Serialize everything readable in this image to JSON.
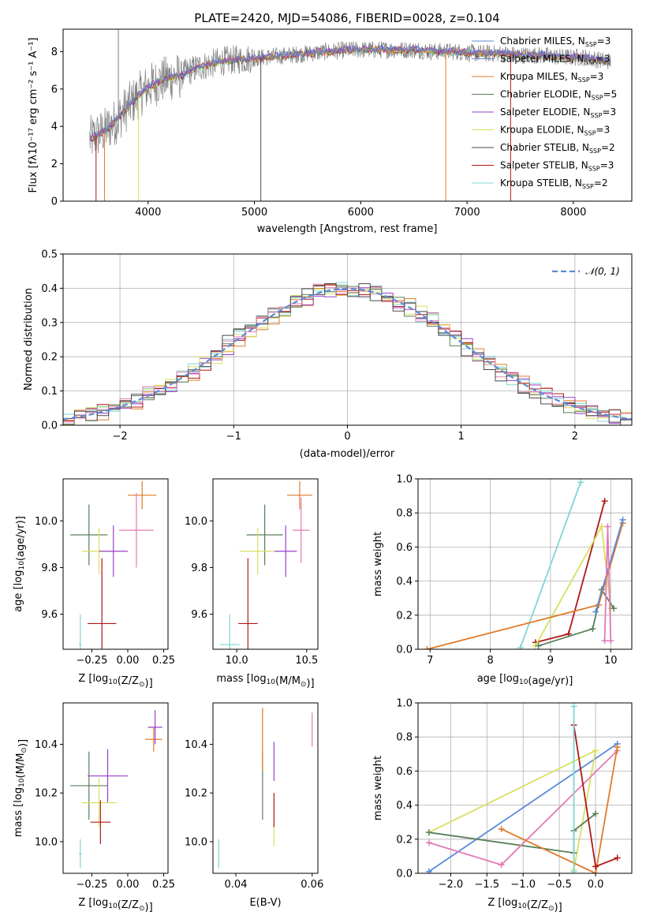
{
  "figure": {
    "title": "PLATE=2420, MJD=54086, FIBERID=0028, z=0.104"
  },
  "colors": {
    "Chabrier MILES": "#5b8bd8",
    "Salpeter MILES": "#6a7fd6",
    "Kroupa MILES": "#e07b2a",
    "Chabrier ELODIE": "#5a7f5a",
    "Salpeter ELODIE": "#9a3fc8",
    "Kroupa ELODIE": "#d8e060",
    "Chabrier STELIB": "#4a4a4a",
    "Salpeter STELIB": "#b01818",
    "Kroupa STELIB": "#7fd6d6",
    "Pink": "#e27ab4",
    "Data": "#808080",
    "Normal": "#5b8bd8"
  },
  "chart_data": [
    {
      "id": "spectrum",
      "type": "line",
      "xlabel": "wavelength [Angstrom, rest frame]",
      "ylabel": "Flux [f_λ10^-17 erg cm^-2 s^-1 A^-1]",
      "xlim": [
        3200,
        8550
      ],
      "ylim": [
        0,
        9.2
      ],
      "xticks": [
        "4000",
        "5000",
        "6000",
        "7000",
        "8000"
      ],
      "yticks": [
        "0",
        "2",
        "4",
        "6",
        "8"
      ],
      "legend_position": "right",
      "legend": [
        {
          "label": "Chabrier MILES, N",
          "sub": "SSP",
          "suffix": "=3",
          "color_key": "Chabrier MILES"
        },
        {
          "label": "Salpeter MILES, N",
          "sub": "SSP",
          "suffix": "=3",
          "color_key": "Salpeter MILES"
        },
        {
          "label": "Kroupa MILES, N",
          "sub": "SSP",
          "suffix": "=3",
          "color_key": "Kroupa MILES"
        },
        {
          "label": "Chabrier ELODIE, N",
          "sub": "SSP",
          "suffix": "=5",
          "color_key": "Chabrier ELODIE"
        },
        {
          "label": "Salpeter ELODIE, N",
          "sub": "SSP",
          "suffix": "=3",
          "color_key": "Salpeter ELODIE"
        },
        {
          "label": "Kroupa ELODIE, N",
          "sub": "SSP",
          "suffix": "=3",
          "color_key": "Kroupa ELODIE"
        },
        {
          "label": "Chabrier STELIB, N",
          "sub": "SSP",
          "suffix": "=2",
          "color_key": "Chabrier STELIB"
        },
        {
          "label": "Salpeter STELIB, N",
          "sub": "SSP",
          "suffix": "=3",
          "color_key": "Salpeter STELIB"
        },
        {
          "label": "Kroupa STELIB, N",
          "sub": "SSP",
          "suffix": "=2",
          "color_key": "Kroupa STELIB"
        }
      ],
      "continuum": {
        "x": [
          3450,
          3600,
          3700,
          3800,
          3900,
          4000,
          4100,
          4200,
          4300,
          4400,
          4500,
          4700,
          4900,
          5100,
          5300,
          5500,
          5700,
          5900,
          6100,
          6300,
          6500,
          6700,
          6900,
          7100,
          7300,
          7500,
          7700,
          7900,
          8100,
          8300
        ],
        "y": [
          3.3,
          3.8,
          4.3,
          5.0,
          5.6,
          6.1,
          6.4,
          6.6,
          6.7,
          7.0,
          7.2,
          7.5,
          7.6,
          7.7,
          7.8,
          7.9,
          8.0,
          8.1,
          8.1,
          8.1,
          8.1,
          8.0,
          8.0,
          7.9,
          7.9,
          7.8,
          7.8,
          7.7,
          7.7,
          7.5
        ]
      }
    },
    {
      "id": "residuals",
      "type": "bar",
      "xlabel": "(data-model)/error",
      "ylabel": "Normed distribution",
      "xlim": [
        -2.5,
        2.5
      ],
      "ylim": [
        0,
        0.5
      ],
      "xticks": [
        "−2",
        "−1",
        "0",
        "1",
        "2"
      ],
      "yticks": [
        "0.0",
        "0.1",
        "0.2",
        "0.3",
        "0.4",
        "0.5"
      ],
      "grid": true,
      "legend": "N(0,1)",
      "legend_position": "top-right"
    },
    {
      "id": "age_vs_Z",
      "type": "scatter",
      "xlabel": "Z [log10(Z/Z⊙)]",
      "ylabel": "age [log10(age/yr)]",
      "xlim": [
        -0.45,
        0.28
      ],
      "ylim": [
        9.45,
        10.18
      ],
      "xticks": [
        "−0.25",
        "0.00",
        "0.25"
      ],
      "yticks": [
        "9.6",
        "9.8",
        "10.0"
      ],
      "points": [
        {
          "x": -0.27,
          "y": 9.94,
          "xerr": 0.13,
          "yerr": 0.13,
          "c": "Chabrier ELODIE"
        },
        {
          "x": -0.2,
          "y": 9.87,
          "xerr": 0.12,
          "yerr": 0.1,
          "c": "Kroupa ELODIE"
        },
        {
          "x": -0.1,
          "y": 9.87,
          "xerr": 0.1,
          "yerr": 0.11,
          "c": "Salpeter ELODIE"
        },
        {
          "x": -0.18,
          "y": 9.56,
          "xerr": 0.1,
          "yerr": 0.28,
          "c": "Salpeter STELIB"
        },
        {
          "x": -0.33,
          "y": 9.47,
          "xerr": 0.01,
          "yerr": 0.13,
          "c": "Kroupa STELIB"
        },
        {
          "x": 0.1,
          "y": 10.11,
          "xerr": 0.1,
          "yerr": 0.06,
          "c": "Kroupa MILES"
        },
        {
          "x": 0.06,
          "y": 9.96,
          "xerr": 0.12,
          "yerr": 0.16,
          "c": "Pink"
        }
      ]
    },
    {
      "id": "age_vs_mass",
      "type": "scatter",
      "xlabel": "mass [log10(M/M⊙)]",
      "ylabel": "",
      "xlim": [
        9.83,
        10.58
      ],
      "ylim": [
        9.45,
        10.18
      ],
      "xticks": [
        "10.0",
        "10.5"
      ],
      "yticks": [
        "9.6",
        "9.8",
        "10.0"
      ],
      "points": [
        {
          "x": 10.2,
          "y": 9.94,
          "xerr": 0.13,
          "yerr": 0.13,
          "c": "Chabrier ELODIE"
        },
        {
          "x": 10.15,
          "y": 9.87,
          "xerr": 0.13,
          "yerr": 0.1,
          "c": "Kroupa ELODIE"
        },
        {
          "x": 10.35,
          "y": 9.87,
          "xerr": 0.08,
          "yerr": 0.11,
          "c": "Salpeter ELODIE"
        },
        {
          "x": 10.08,
          "y": 9.56,
          "xerr": 0.07,
          "yerr": 0.28,
          "c": "Salpeter STELIB"
        },
        {
          "x": 9.95,
          "y": 9.47,
          "xerr": 0.07,
          "yerr": 0.13,
          "c": "Kroupa STELIB"
        },
        {
          "x": 10.45,
          "y": 10.11,
          "xerr": 0.09,
          "yerr": 0.06,
          "c": "Kroupa MILES"
        },
        {
          "x": 10.46,
          "y": 9.96,
          "xerr": 0.06,
          "yerr": 0.14,
          "c": "Pink"
        }
      ]
    },
    {
      "id": "massweight_vs_age",
      "type": "line",
      "xlabel": "age [log10(age/yr)]",
      "ylabel": "mass weight",
      "xlim": [
        6.8,
        10.35
      ],
      "ylim": [
        0,
        1
      ],
      "xticks": [
        "7",
        "8",
        "9",
        "10"
      ],
      "yticks": [
        "0.0",
        "0.2",
        "0.4",
        "0.6",
        "0.8",
        "1.0"
      ],
      "grid": true,
      "series": [
        {
          "c": "Kroupa STELIB",
          "x": [
            8.5,
            9.5
          ],
          "y": [
            0.01,
            0.98
          ]
        },
        {
          "c": "Salpeter STELIB",
          "x": [
            8.75,
            9.3,
            9.9
          ],
          "y": [
            0.04,
            0.09,
            0.87
          ]
        },
        {
          "c": "Kroupa ELODIE",
          "x": [
            8.75,
            9.85,
            10.0
          ],
          "y": [
            0.02,
            0.72,
            0.24
          ]
        },
        {
          "c": "Chabrier ELODIE",
          "x": [
            8.8,
            9.7,
            9.85,
            10.05
          ],
          "y": [
            0.02,
            0.12,
            0.35,
            0.24
          ]
        },
        {
          "c": "Kroupa MILES",
          "x": [
            6.95,
            9.8,
            10.2
          ],
          "y": [
            0.0,
            0.26,
            0.74
          ]
        },
        {
          "c": "Chabrier MILES",
          "x": [
            9.75,
            10.2
          ],
          "y": [
            0.22,
            0.76
          ]
        },
        {
          "c": "Pink",
          "x": [
            9.9,
            9.95,
            10.0
          ],
          "y": [
            0.05,
            0.72,
            0.05
          ]
        }
      ]
    },
    {
      "id": "mass_vs_Z",
      "type": "scatter",
      "xlabel": "Z [log10(Z/Z⊙)]",
      "ylabel": "mass [log10(M/M⊙)]",
      "xlim": [
        -0.45,
        0.28
      ],
      "ylim": [
        9.87,
        10.57
      ],
      "xticks": [
        "−0.25",
        "0.00",
        "0.25"
      ],
      "yticks": [
        "10.0",
        "10.2",
        "10.4"
      ],
      "points": [
        {
          "x": -0.27,
          "y": 10.23,
          "xerr": 0.13,
          "yerr": 0.14,
          "c": "Chabrier ELODIE"
        },
        {
          "x": -0.14,
          "y": 10.27,
          "xerr": 0.14,
          "yerr": 0.11,
          "c": "Salpeter ELODIE"
        },
        {
          "x": -0.2,
          "y": 10.16,
          "xerr": 0.12,
          "yerr": 0.1,
          "c": "Kroupa ELODIE"
        },
        {
          "x": -0.19,
          "y": 10.08,
          "xerr": 0.07,
          "yerr": 0.09,
          "c": "Salpeter STELIB"
        },
        {
          "x": -0.33,
          "y": 9.95,
          "xerr": 0.01,
          "yerr": 0.06,
          "c": "Kroupa STELIB"
        },
        {
          "x": 0.18,
          "y": 10.42,
          "xerr": 0.06,
          "yerr": 0.05,
          "c": "Kroupa MILES"
        },
        {
          "x": 0.19,
          "y": 10.47,
          "xerr": 0.05,
          "yerr": 0.07,
          "c": "Salpeter ELODIE"
        }
      ]
    },
    {
      "id": "mass_vs_EBV",
      "type": "scatter",
      "xlabel": "E(B-V)",
      "ylabel": "",
      "xlim": [
        0.034,
        0.0615
      ],
      "ylim": [
        9.87,
        10.57
      ],
      "xticks": [
        "0.04",
        "0.06"
      ],
      "yticks": [
        "10.0",
        "10.2",
        "10.4"
      ],
      "points": [
        {
          "x": 0.047,
          "y": 10.23,
          "xerr": 0.0,
          "yerr": 0.14,
          "c": "Chabrier ELODIE"
        },
        {
          "x": 0.047,
          "y": 10.42,
          "xerr": 0.0,
          "yerr": 0.13,
          "c": "Kroupa MILES"
        },
        {
          "x": 0.05,
          "y": 10.33,
          "xerr": 0.0,
          "yerr": 0.08,
          "c": "Salpeter ELODIE"
        },
        {
          "x": 0.05,
          "y": 10.08,
          "xerr": 0.0,
          "yerr": 0.1,
          "c": "Kroupa ELODIE"
        },
        {
          "x": 0.05,
          "y": 10.13,
          "xerr": 0.0,
          "yerr": 0.07,
          "c": "Salpeter STELIB"
        },
        {
          "x": 0.0355,
          "y": 9.95,
          "xerr": 0.0,
          "yerr": 0.06,
          "c": "Kroupa STELIB"
        },
        {
          "x": 0.06,
          "y": 10.46,
          "xerr": 0.0,
          "yerr": 0.07,
          "c": "Pink"
        }
      ]
    },
    {
      "id": "massweight_vs_Z",
      "type": "line",
      "xlabel": "Z [log10(Z/Z⊙)]",
      "ylabel": "mass weight",
      "xlim": [
        -2.45,
        0.5
      ],
      "ylim": [
        0,
        1
      ],
      "xticks": [
        "−2.0",
        "−1.5",
        "−1.0",
        "−0.5",
        "0.0"
      ],
      "yticks": [
        "0.0",
        "0.2",
        "0.4",
        "0.6",
        "0.8",
        "1.0"
      ],
      "grid": true,
      "series": [
        {
          "c": "Chabrier MILES",
          "x": [
            -2.3,
            0.3
          ],
          "y": [
            0.01,
            0.76
          ]
        },
        {
          "c": "Kroupa ELODIE",
          "x": [
            -2.3,
            0.0,
            -0.3
          ],
          "y": [
            0.24,
            0.72,
            0.02
          ]
        },
        {
          "c": "Chabrier ELODIE",
          "x": [
            -2.3,
            -0.3,
            -0.3,
            0.0
          ],
          "y": [
            0.24,
            0.12,
            0.25,
            0.35
          ]
        },
        {
          "c": "Pink",
          "x": [
            -2.3,
            -1.3,
            0.3
          ],
          "y": [
            0.18,
            0.05,
            0.72
          ]
        },
        {
          "c": "Kroupa MILES",
          "x": [
            -1.3,
            0.0,
            0.3
          ],
          "y": [
            0.26,
            0.0,
            0.74
          ]
        },
        {
          "c": "Salpeter STELIB",
          "x": [
            -0.3,
            0.0,
            0.3
          ],
          "y": [
            0.87,
            0.04,
            0.09
          ]
        },
        {
          "c": "Kroupa STELIB",
          "x": [
            -0.3,
            -0.3
          ],
          "y": [
            0.01,
            0.98
          ]
        }
      ]
    }
  ]
}
